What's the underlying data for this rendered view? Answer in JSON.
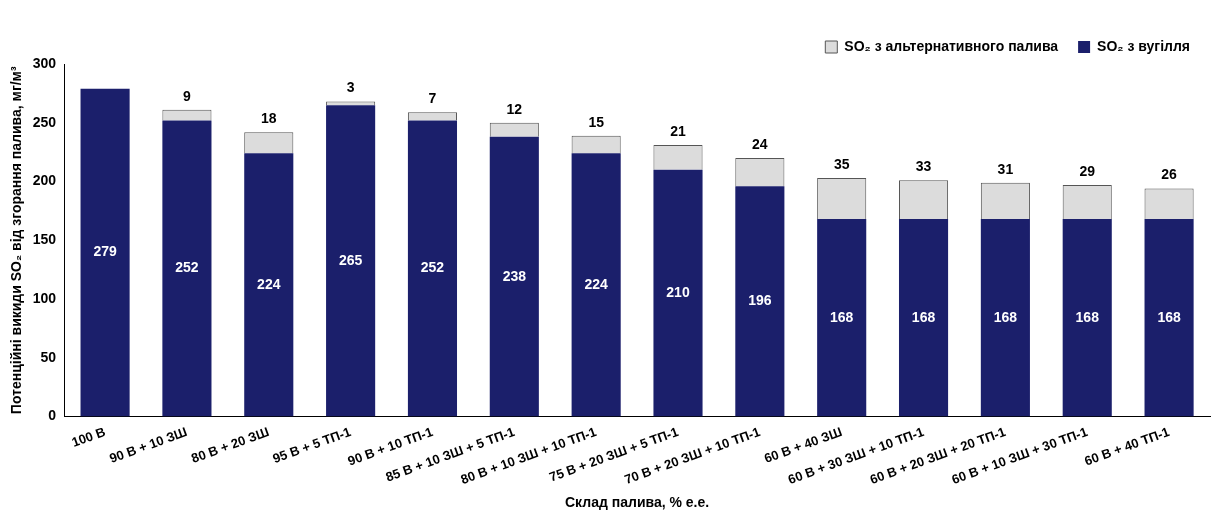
{
  "chart_data": {
    "type": "bar",
    "stacked": true,
    "xlabel": "Склад палива, % е.е.",
    "ylabel": "Потенційні викиди SO₂ від згорання палива, мг/м³",
    "categories": [
      "100 В",
      "90 В + 10 ЗШ",
      "80 В + 20 ЗШ",
      "95 В + 5 ТП-1",
      "90 В + 10 ТП-1",
      "85 В + 10 ЗШ + 5 ТП-1",
      "80 В + 10 ЗШ + 10 ТП-1",
      "75 В + 20 ЗШ + 5 ТП-1",
      "70 В + 20 ЗШ + 10 ТП-1",
      "60 В + 40 ЗШ",
      "60 В + 30 ЗШ + 10 ТП-1",
      "60 В + 20 ЗШ + 20 ТП-1",
      "60 В + 10 ЗШ + 30 ТП-1",
      "60 В + 40 ТП-1"
    ],
    "series": [
      {
        "name": "SO₂ з вугілля",
        "color": "#1b1f6b",
        "values": [
          279,
          252,
          224,
          265,
          252,
          238,
          224,
          210,
          196,
          168,
          168,
          168,
          168,
          168
        ]
      },
      {
        "name": "SO₂ з альтернативного палива",
        "color": "#dcdcdc",
        "values": [
          null,
          9,
          18,
          3,
          7,
          12,
          15,
          21,
          24,
          35,
          33,
          31,
          29,
          26
        ]
      }
    ],
    "ylim": [
      0,
      300
    ],
    "yticks": [
      0,
      50,
      100,
      150,
      200,
      250,
      300
    ],
    "grid": false,
    "legend": "top right",
    "data_labels": true
  }
}
